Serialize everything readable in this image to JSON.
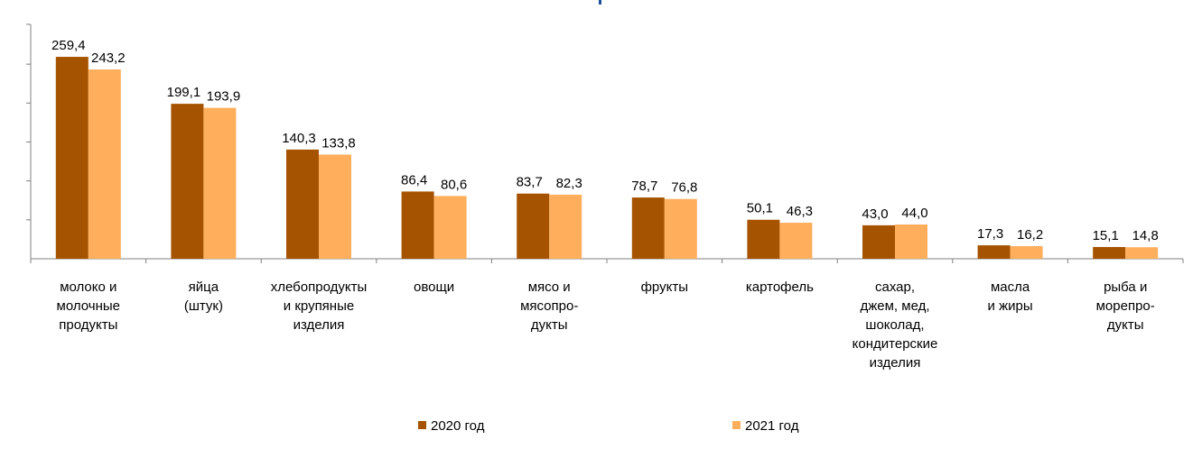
{
  "colors": {
    "series_2020": "#A65300",
    "series_2021": "#FFAE5C",
    "axis": "#808080",
    "title_mark": "#1F4E9A"
  },
  "chart_data": {
    "type": "bar",
    "title": "",
    "xlabel": "",
    "ylabel": "",
    "ylim": [
      0,
      290
    ],
    "y_tick_values": [
      50,
      100,
      150,
      200,
      250
    ],
    "y_tick_labels_visible": false,
    "grid": false,
    "legend_position": "bottom",
    "categories": [
      [
        "молоко и",
        "молочные",
        "продукты"
      ],
      [
        "яйца",
        "(штук)"
      ],
      [
        "хлебопродукты",
        "и крупяные",
        "изделия"
      ],
      [
        "овощи"
      ],
      [
        "мясо и",
        "мясопро-",
        "дукты"
      ],
      [
        "фрукты"
      ],
      [
        "картофель"
      ],
      [
        "сахар,",
        "джем, мед,",
        "шоколад,",
        "кондитерские",
        "изделия"
      ],
      [
        "масла",
        "и жиры"
      ],
      [
        "рыба и",
        "морепро-",
        "дукты"
      ]
    ],
    "series": [
      {
        "name": "2020 год",
        "values": [
          259.4,
          199.1,
          140.3,
          86.4,
          83.7,
          78.7,
          50.1,
          43.0,
          17.3,
          15.1
        ],
        "labels": [
          "259,4",
          "199,1",
          "140,3",
          "86,4",
          "83,7",
          "78,7",
          "50,1",
          "43,0",
          "17,3",
          "15,1"
        ]
      },
      {
        "name": "2021 год",
        "values": [
          243.2,
          193.9,
          133.8,
          80.6,
          82.3,
          76.8,
          46.3,
          44.0,
          16.2,
          14.8
        ],
        "labels": [
          "243,2",
          "193,9",
          "133,8",
          "80,6",
          "82,3",
          "76,8",
          "46,3",
          "44,0",
          "16,2",
          "14,8"
        ]
      }
    ]
  }
}
